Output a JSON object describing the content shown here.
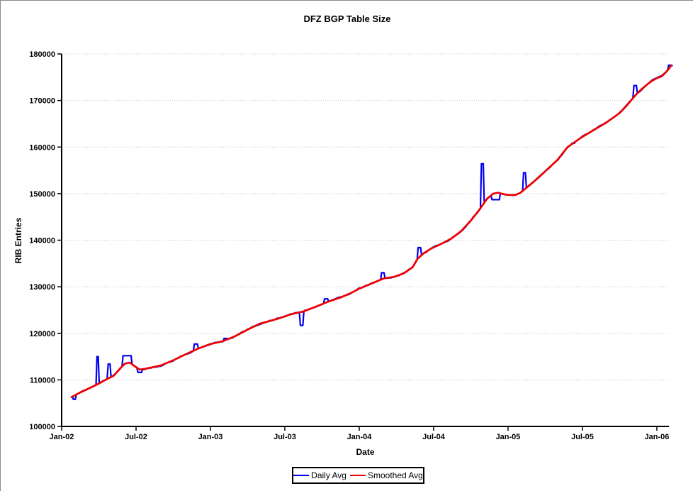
{
  "chart": {
    "title": "DFZ BGP Table Size",
    "x_axis_label": "Date",
    "y_axis_label": "RIB Entries",
    "legend": {
      "daily_label": "Daily Avg",
      "smoothed_label": "Smoothed Avg"
    }
  },
  "colors": {
    "daily": "#0000ee",
    "smoothed": "#ee0000",
    "grid": "#c6c6c6",
    "axis": "#000000",
    "background": "#ffffff"
  },
  "chart_data": {
    "type": "line",
    "title": "DFZ BGP Table Size",
    "xlabel": "Date",
    "ylabel": "RIB Entries",
    "ylim": [
      100000,
      180000
    ],
    "y_ticks": [
      {
        "value": 100000,
        "label": "100000"
      },
      {
        "value": 110000,
        "label": "110000"
      },
      {
        "value": 120000,
        "label": "120000"
      },
      {
        "value": 130000,
        "label": "130000"
      },
      {
        "value": 140000,
        "label": "140000"
      },
      {
        "value": 150000,
        "label": "150000"
      },
      {
        "value": 160000,
        "label": "160000"
      },
      {
        "value": 170000,
        "label": "170000"
      },
      {
        "value": 180000,
        "label": "180000"
      }
    ],
    "x_ticks": [
      {
        "label": "Jan-02",
        "month": 0
      },
      {
        "label": "Jul-02",
        "month": 6
      },
      {
        "label": "Jan-03",
        "month": 12
      },
      {
        "label": "Jul-03",
        "month": 18
      },
      {
        "label": "Jan-04",
        "month": 24
      },
      {
        "label": "Jul-04",
        "month": 30
      },
      {
        "label": "Jan-05",
        "month": 36
      },
      {
        "label": "Jul-05",
        "month": 42
      },
      {
        "label": "Jan-06",
        "month": 48
      }
    ],
    "x_range_months": [
      0,
      49.15
    ],
    "grid": "horizontal-dotted",
    "legend_position": "bottom-center",
    "series": [
      {
        "name": "Daily Avg",
        "color": "#0000ee",
        "derived_from": "Smoothed Avg baseline plus visible spikes and daily jitter",
        "noise_amplitude": 200,
        "deviations": [
          [
            0.95,
            1.1,
            105800
          ],
          [
            2.85,
            2.95,
            115000
          ],
          [
            3.75,
            3.9,
            113400
          ],
          [
            4.95,
            5.6,
            115200
          ],
          [
            6.15,
            6.45,
            111600
          ],
          [
            10.7,
            10.95,
            117700
          ],
          [
            13.1,
            13.35,
            118900
          ],
          [
            19.25,
            19.45,
            121700
          ],
          [
            21.2,
            21.45,
            127400
          ],
          [
            25.8,
            26.0,
            133000
          ],
          [
            28.75,
            28.95,
            138400
          ],
          [
            33.85,
            34.0,
            156400
          ],
          [
            34.7,
            35.3,
            148700
          ],
          [
            37.25,
            37.4,
            154500
          ],
          [
            41.15,
            41.35,
            160800
          ],
          [
            46.15,
            46.35,
            173200
          ],
          [
            48.95,
            49.15,
            177600
          ]
        ]
      },
      {
        "name": "Smoothed Avg",
        "color": "#ee0000",
        "points": [
          [
            0.8,
            106300
          ],
          [
            1.5,
            107300
          ],
          [
            2.3,
            108300
          ],
          [
            3.0,
            109200
          ],
          [
            3.6,
            110100
          ],
          [
            4.2,
            110900
          ],
          [
            4.7,
            112400
          ],
          [
            5.1,
            113500
          ],
          [
            5.5,
            113700
          ],
          [
            5.9,
            112900
          ],
          [
            6.3,
            112200
          ],
          [
            6.8,
            112400
          ],
          [
            7.5,
            112800
          ],
          [
            8.0,
            113100
          ],
          [
            9.0,
            114200
          ],
          [
            10.0,
            115500
          ],
          [
            11.0,
            116700
          ],
          [
            12.0,
            117700
          ],
          [
            13.0,
            118300
          ],
          [
            14.0,
            119400
          ],
          [
            15.0,
            120800
          ],
          [
            16.0,
            122100
          ],
          [
            16.6,
            122500
          ],
          [
            17.5,
            123200
          ],
          [
            18.5,
            124100
          ],
          [
            19.5,
            124700
          ],
          [
            20.5,
            125700
          ],
          [
            21.5,
            126800
          ],
          [
            22.5,
            127700
          ],
          [
            23.3,
            128600
          ],
          [
            24.0,
            129600
          ],
          [
            25.0,
            130700
          ],
          [
            26.0,
            131800
          ],
          [
            26.8,
            132100
          ],
          [
            27.6,
            132900
          ],
          [
            28.3,
            134200
          ],
          [
            28.7,
            136000
          ],
          [
            29.2,
            137200
          ],
          [
            29.8,
            138200
          ],
          [
            30.6,
            139200
          ],
          [
            31.4,
            140300
          ],
          [
            32.2,
            141900
          ],
          [
            33.0,
            144200
          ],
          [
            33.7,
            146600
          ],
          [
            34.3,
            148900
          ],
          [
            34.8,
            150000
          ],
          [
            35.2,
            150200
          ],
          [
            35.6,
            149900
          ],
          [
            36.0,
            149700
          ],
          [
            36.6,
            149700
          ],
          [
            37.0,
            150200
          ],
          [
            37.5,
            151300
          ],
          [
            38.0,
            152400
          ],
          [
            39.0,
            154800
          ],
          [
            40.0,
            157300
          ],
          [
            40.8,
            160000
          ],
          [
            41.5,
            161300
          ],
          [
            42.0,
            162200
          ],
          [
            43.0,
            163800
          ],
          [
            44.0,
            165400
          ],
          [
            45.0,
            167300
          ],
          [
            45.6,
            169000
          ],
          [
            46.0,
            170300
          ],
          [
            46.4,
            171500
          ],
          [
            46.8,
            172500
          ],
          [
            47.2,
            173400
          ],
          [
            47.6,
            174200
          ],
          [
            48.0,
            174800
          ],
          [
            48.4,
            175200
          ],
          [
            48.7,
            176000
          ],
          [
            49.0,
            176900
          ],
          [
            49.15,
            177500
          ]
        ]
      }
    ]
  }
}
